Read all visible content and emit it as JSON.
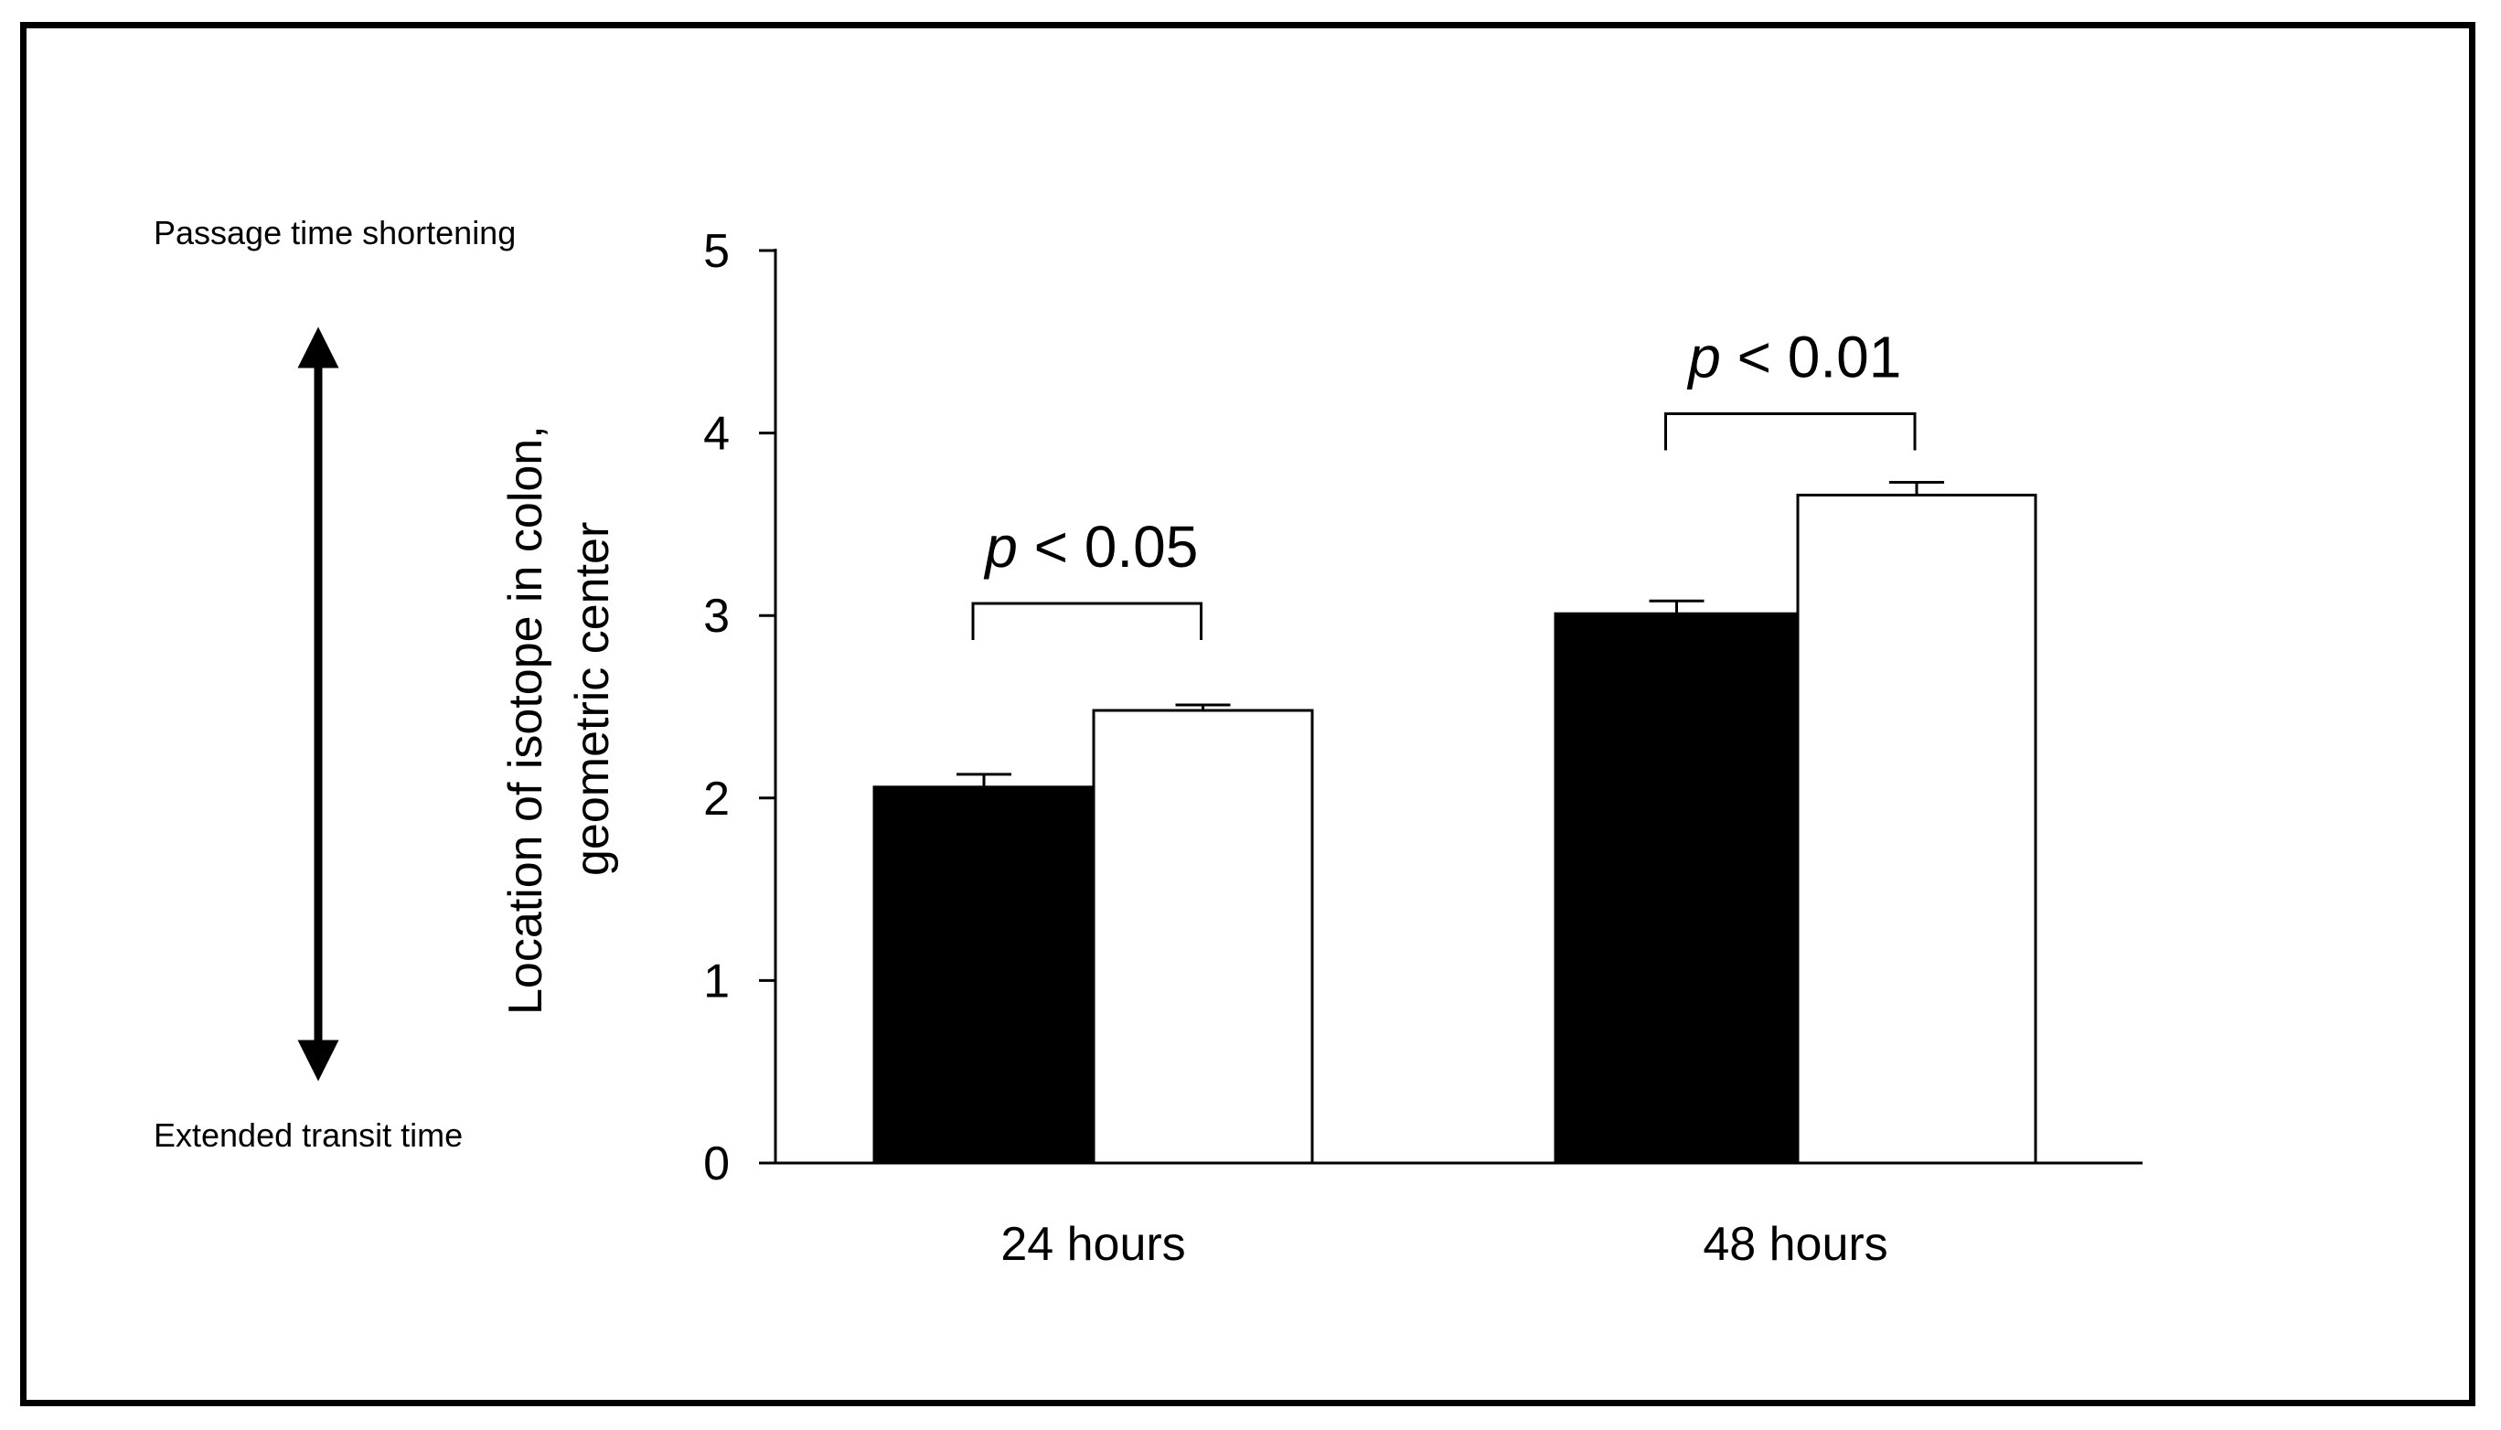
{
  "side_annotations": {
    "top_label": "Passage time shortening",
    "bottom_label": "Extended transit time",
    "arrow_icon": "double-headed-vertical-arrow-icon"
  },
  "chart_data": {
    "type": "bar",
    "title": "",
    "xlabel": "",
    "ylabel_line1": "Location of isotope in colon,",
    "ylabel_line2": "geometric center",
    "ylim": [
      0,
      5
    ],
    "yticks": [
      "0",
      "1",
      "2",
      "3",
      "4",
      "5"
    ],
    "categories": [
      "24 hours",
      "48 hours"
    ],
    "series": [
      {
        "values": [
          2.06,
          3.01
        ],
        "errors": [
          0.07,
          0.07
        ],
        "color": "#000000"
      },
      {
        "values": [
          2.48,
          3.66
        ],
        "errors": [
          0.03,
          0.07
        ],
        "color": "#ffffff"
      }
    ],
    "significance": [
      {
        "category": "24 hours",
        "label_italic": "p",
        "label_rest": " < 0.05"
      },
      {
        "category": "48 hours",
        "label_italic": "p",
        "label_rest": " < 0.01"
      }
    ],
    "grid": false,
    "legend": "none"
  }
}
